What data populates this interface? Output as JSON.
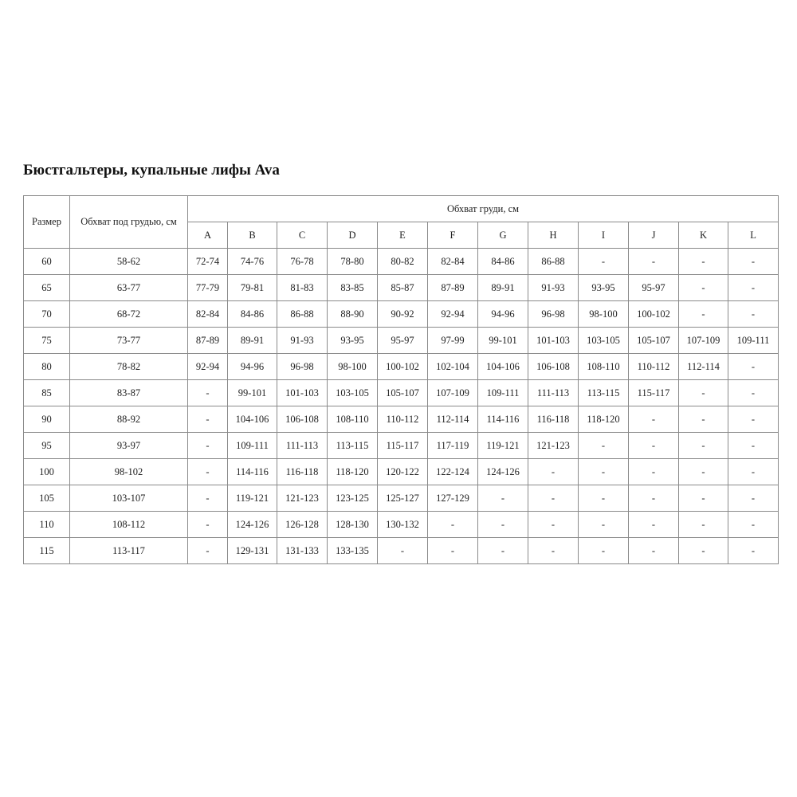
{
  "title": "Бюстгальтеры, купальные лифы Ava",
  "table": {
    "size_header": "Размер",
    "underbust_header": "Обхват под грудью, см",
    "bust_header": "Обхват груди, см",
    "cups": [
      "A",
      "B",
      "C",
      "D",
      "E",
      "F",
      "G",
      "H",
      "I",
      "J",
      "K",
      "L"
    ],
    "rows": [
      {
        "size": "60",
        "underbust": "58-62",
        "cells": [
          "72-74",
          "74-76",
          "76-78",
          "78-80",
          "80-82",
          "82-84",
          "84-86",
          "86-88",
          "-",
          "-",
          "-",
          "-"
        ]
      },
      {
        "size": "65",
        "underbust": "63-77",
        "cells": [
          "77-79",
          "79-81",
          "81-83",
          "83-85",
          "85-87",
          "87-89",
          "89-91",
          "91-93",
          "93-95",
          "95-97",
          "-",
          "-"
        ]
      },
      {
        "size": "70",
        "underbust": "68-72",
        "cells": [
          "82-84",
          "84-86",
          "86-88",
          "88-90",
          "90-92",
          "92-94",
          "94-96",
          "96-98",
          "98-100",
          "100-102",
          "-",
          "-"
        ]
      },
      {
        "size": "75",
        "underbust": "73-77",
        "cells": [
          "87-89",
          "89-91",
          "91-93",
          "93-95",
          "95-97",
          "97-99",
          "99-101",
          "101-103",
          "103-105",
          "105-107",
          "107-109",
          "109-111"
        ]
      },
      {
        "size": "80",
        "underbust": "78-82",
        "cells": [
          "92-94",
          "94-96",
          "96-98",
          "98-100",
          "100-102",
          "102-104",
          "104-106",
          "106-108",
          "108-110",
          "110-112",
          "112-114",
          "-"
        ]
      },
      {
        "size": "85",
        "underbust": "83-87",
        "cells": [
          "-",
          "99-101",
          "101-103",
          "103-105",
          "105-107",
          "107-109",
          "109-111",
          "111-113",
          "113-115",
          "115-117",
          "-",
          "-"
        ]
      },
      {
        "size": "90",
        "underbust": "88-92",
        "cells": [
          "-",
          "104-106",
          "106-108",
          "108-110",
          "110-112",
          "112-114",
          "114-116",
          "116-118",
          "118-120",
          "-",
          "-",
          "-"
        ]
      },
      {
        "size": "95",
        "underbust": "93-97",
        "cells": [
          "-",
          "109-111",
          "111-113",
          "113-115",
          "115-117",
          "117-119",
          "119-121",
          "121-123",
          "-",
          "-",
          "-",
          "-"
        ]
      },
      {
        "size": "100",
        "underbust": "98-102",
        "cells": [
          "-",
          "114-116",
          "116-118",
          "118-120",
          "120-122",
          "122-124",
          "124-126",
          "-",
          "-",
          "-",
          "-",
          "-"
        ]
      },
      {
        "size": "105",
        "underbust": "103-107",
        "cells": [
          "-",
          "119-121",
          "121-123",
          "123-125",
          "125-127",
          "127-129",
          "-",
          "-",
          "-",
          "-",
          "-",
          "-"
        ]
      },
      {
        "size": "110",
        "underbust": "108-112",
        "cells": [
          "-",
          "124-126",
          "126-128",
          "128-130",
          "130-132",
          "-",
          "-",
          "-",
          "-",
          "-",
          "-",
          "-"
        ]
      },
      {
        "size": "115",
        "underbust": "113-117",
        "cells": [
          "-",
          "129-131",
          "131-133",
          "133-135",
          "-",
          "-",
          "-",
          "-",
          "-",
          "-",
          "-",
          "-"
        ]
      }
    ]
  }
}
